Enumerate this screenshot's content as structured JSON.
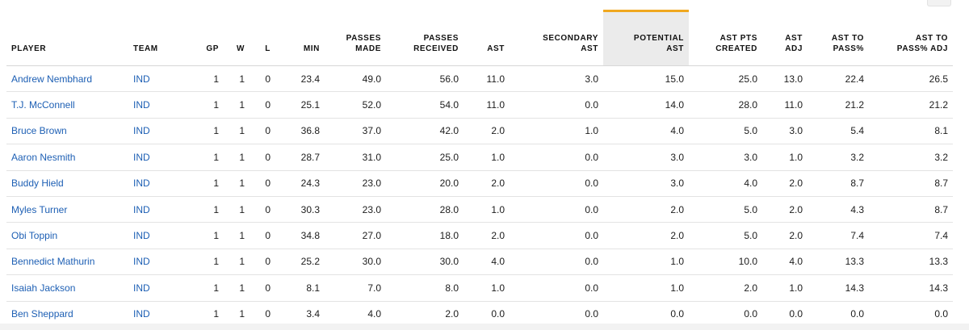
{
  "columns": [
    {
      "key": "player",
      "label": "PLAYER"
    },
    {
      "key": "team",
      "label": "TEAM"
    },
    {
      "key": "gp",
      "label": "GP"
    },
    {
      "key": "w",
      "label": "W"
    },
    {
      "key": "l",
      "label": "L"
    },
    {
      "key": "min",
      "label": "MIN"
    },
    {
      "key": "passes_made",
      "label": "PASSES MADE"
    },
    {
      "key": "passes_received",
      "label": "PASSES RECEIVED"
    },
    {
      "key": "ast",
      "label": "AST"
    },
    {
      "key": "secondary_ast",
      "label": "SECONDARY AST"
    },
    {
      "key": "potential_ast",
      "label": "POTENTIAL AST"
    },
    {
      "key": "ast_pts_created",
      "label": "AST PTS CREATED"
    },
    {
      "key": "ast_adj",
      "label": "AST ADJ"
    },
    {
      "key": "ast_to_pass",
      "label": "AST TO PASS%"
    },
    {
      "key": "ast_to_pass_adj",
      "label": "AST TO PASS% ADJ"
    }
  ],
  "sorted_column": "potential_ast",
  "colors": {
    "accent": "#f0a81f",
    "link": "#1d5fb4",
    "header_highlight": "#ebebeb"
  },
  "rows": [
    {
      "player": "Andrew Nembhard",
      "team": "IND",
      "gp": "1",
      "w": "1",
      "l": "0",
      "min": "23.4",
      "passes_made": "49.0",
      "passes_received": "56.0",
      "ast": "11.0",
      "secondary_ast": "3.0",
      "potential_ast": "15.0",
      "ast_pts_created": "25.0",
      "ast_adj": "13.0",
      "ast_to_pass": "22.4",
      "ast_to_pass_adj": "26.5"
    },
    {
      "player": "T.J. McConnell",
      "team": "IND",
      "gp": "1",
      "w": "1",
      "l": "0",
      "min": "25.1",
      "passes_made": "52.0",
      "passes_received": "54.0",
      "ast": "11.0",
      "secondary_ast": "0.0",
      "potential_ast": "14.0",
      "ast_pts_created": "28.0",
      "ast_adj": "11.0",
      "ast_to_pass": "21.2",
      "ast_to_pass_adj": "21.2"
    },
    {
      "player": "Bruce Brown",
      "team": "IND",
      "gp": "1",
      "w": "1",
      "l": "0",
      "min": "36.8",
      "passes_made": "37.0",
      "passes_received": "42.0",
      "ast": "2.0",
      "secondary_ast": "1.0",
      "potential_ast": "4.0",
      "ast_pts_created": "5.0",
      "ast_adj": "3.0",
      "ast_to_pass": "5.4",
      "ast_to_pass_adj": "8.1"
    },
    {
      "player": "Aaron Nesmith",
      "team": "IND",
      "gp": "1",
      "w": "1",
      "l": "0",
      "min": "28.7",
      "passes_made": "31.0",
      "passes_received": "25.0",
      "ast": "1.0",
      "secondary_ast": "0.0",
      "potential_ast": "3.0",
      "ast_pts_created": "3.0",
      "ast_adj": "1.0",
      "ast_to_pass": "3.2",
      "ast_to_pass_adj": "3.2"
    },
    {
      "player": "Buddy Hield",
      "team": "IND",
      "gp": "1",
      "w": "1",
      "l": "0",
      "min": "24.3",
      "passes_made": "23.0",
      "passes_received": "20.0",
      "ast": "2.0",
      "secondary_ast": "0.0",
      "potential_ast": "3.0",
      "ast_pts_created": "4.0",
      "ast_adj": "2.0",
      "ast_to_pass": "8.7",
      "ast_to_pass_adj": "8.7"
    },
    {
      "player": "Myles Turner",
      "team": "IND",
      "gp": "1",
      "w": "1",
      "l": "0",
      "min": "30.3",
      "passes_made": "23.0",
      "passes_received": "28.0",
      "ast": "1.0",
      "secondary_ast": "0.0",
      "potential_ast": "2.0",
      "ast_pts_created": "5.0",
      "ast_adj": "2.0",
      "ast_to_pass": "4.3",
      "ast_to_pass_adj": "8.7"
    },
    {
      "player": "Obi Toppin",
      "team": "IND",
      "gp": "1",
      "w": "1",
      "l": "0",
      "min": "34.8",
      "passes_made": "27.0",
      "passes_received": "18.0",
      "ast": "2.0",
      "secondary_ast": "0.0",
      "potential_ast": "2.0",
      "ast_pts_created": "5.0",
      "ast_adj": "2.0",
      "ast_to_pass": "7.4",
      "ast_to_pass_adj": "7.4"
    },
    {
      "player": "Bennedict Mathurin",
      "team": "IND",
      "gp": "1",
      "w": "1",
      "l": "0",
      "min": "25.2",
      "passes_made": "30.0",
      "passes_received": "30.0",
      "ast": "4.0",
      "secondary_ast": "0.0",
      "potential_ast": "1.0",
      "ast_pts_created": "10.0",
      "ast_adj": "4.0",
      "ast_to_pass": "13.3",
      "ast_to_pass_adj": "13.3"
    },
    {
      "player": "Isaiah Jackson",
      "team": "IND",
      "gp": "1",
      "w": "1",
      "l": "0",
      "min": "8.1",
      "passes_made": "7.0",
      "passes_received": "8.0",
      "ast": "1.0",
      "secondary_ast": "0.0",
      "potential_ast": "1.0",
      "ast_pts_created": "2.0",
      "ast_adj": "1.0",
      "ast_to_pass": "14.3",
      "ast_to_pass_adj": "14.3"
    },
    {
      "player": "Ben Sheppard",
      "team": "IND",
      "gp": "1",
      "w": "1",
      "l": "0",
      "min": "3.4",
      "passes_made": "4.0",
      "passes_received": "2.0",
      "ast": "0.0",
      "secondary_ast": "0.0",
      "potential_ast": "0.0",
      "ast_pts_created": "0.0",
      "ast_adj": "0.0",
      "ast_to_pass": "0.0",
      "ast_to_pass_adj": "0.0"
    }
  ]
}
